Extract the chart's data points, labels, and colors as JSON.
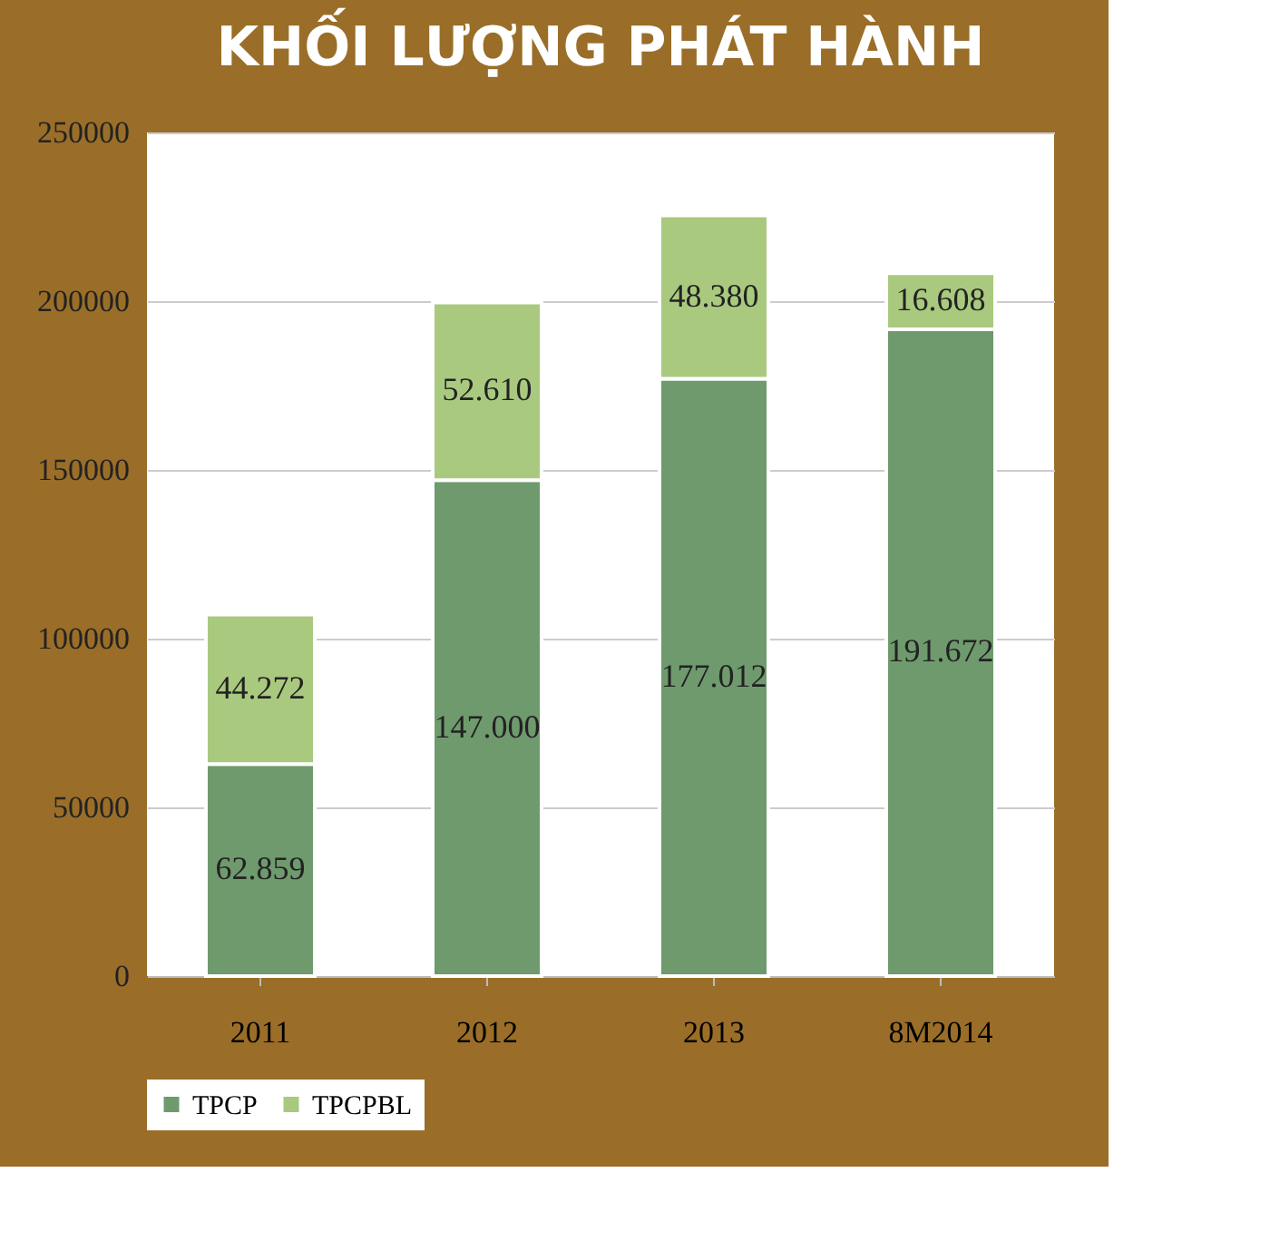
{
  "chart_data": {
    "type": "bar",
    "title": "KHỐI LƯỢNG PHÁT HÀNH",
    "categories": [
      "2011",
      "2012",
      "2013",
      "8M2014"
    ],
    "stacked": true,
    "series": [
      {
        "name": "TPCP",
        "color": "#6f9a6d",
        "values": [
          62859,
          147000,
          177012,
          191672
        ],
        "value_labels": [
          "62.859",
          "147.000",
          "177.012",
          "191.672"
        ]
      },
      {
        "name": "TPCPBL",
        "color": "#a9c97f",
        "values": [
          44272,
          52610,
          48380,
          16608
        ],
        "value_labels": [
          "44.272",
          "52.610",
          "48.380",
          "16.608"
        ]
      }
    ],
    "ylim": [
      0,
      250000
    ],
    "yticks": [
      0,
      50000,
      100000,
      150000,
      200000,
      250000
    ],
    "grid": "y",
    "legend": "bottom"
  }
}
